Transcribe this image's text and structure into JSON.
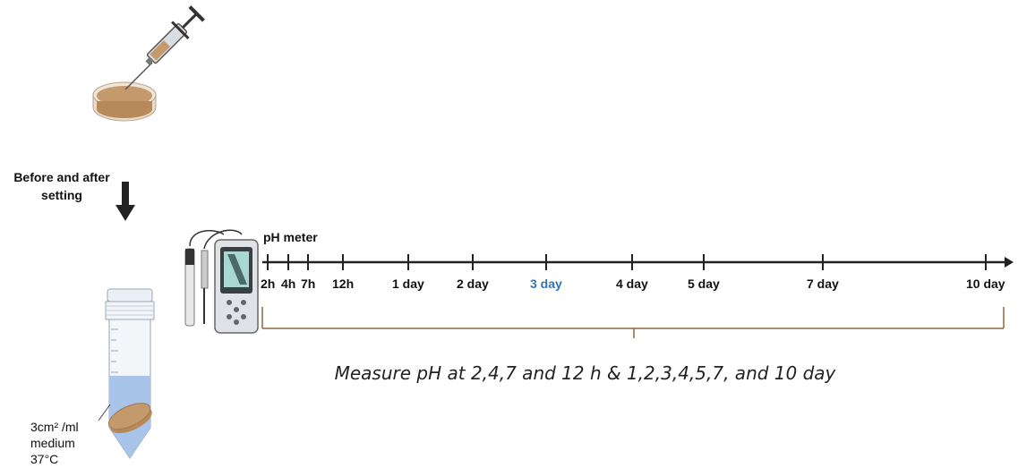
{
  "labels": {
    "before_after": "Before and after setting",
    "ph_meter": "pH meter",
    "measure": "Measure pH at 2,4,7 and 12 h & 1,2,3,4,5,7, and 10 day",
    "tube_line1": "3cm² /ml",
    "tube_line2": "medium",
    "tube_line3": "37°C"
  },
  "timeline": {
    "ticks": [
      {
        "label": "2h",
        "highlight": false
      },
      {
        "label": "4h",
        "highlight": false
      },
      {
        "label": "7h",
        "highlight": false
      },
      {
        "label": "12h",
        "highlight": false
      },
      {
        "label": "1 day",
        "highlight": false
      },
      {
        "label": "2 day",
        "highlight": false
      },
      {
        "label": "3 day",
        "highlight": true
      },
      {
        "label": "4 day",
        "highlight": false
      },
      {
        "label": "5 day",
        "highlight": false
      },
      {
        "label": "7 day",
        "highlight": false
      },
      {
        "label": "10 day",
        "highlight": false
      }
    ]
  },
  "colors": {
    "highlight": "#2e75b6",
    "bracket": "#8b6a3e",
    "sample": "#c49a6c",
    "medium": "#a8c4e8"
  },
  "icons": [
    "syringe-icon",
    "petri-dish-icon",
    "down-arrow-icon",
    "ph-meter-icon",
    "falcon-tube-icon"
  ]
}
